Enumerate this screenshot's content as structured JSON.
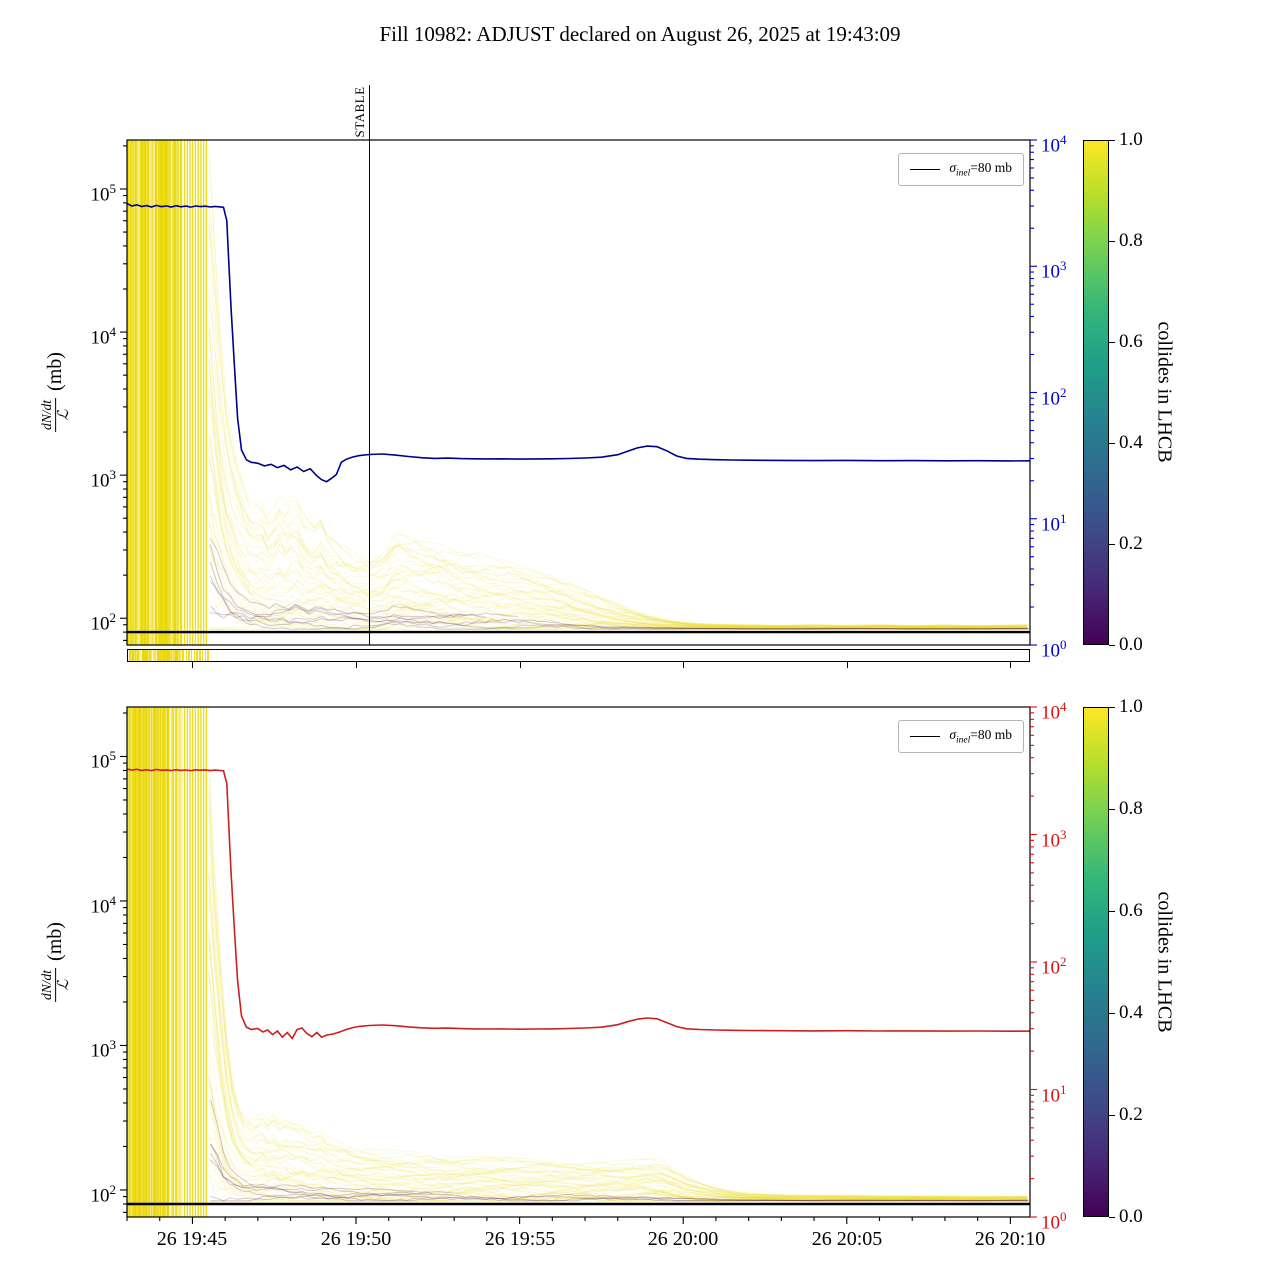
{
  "title": "Fill 10982: ADJUST declared on August 26, 2025 at 19:43:09",
  "ylabel": {
    "numerator": "dN/dt",
    "denominator": "ℒ",
    "unit": "(mb)"
  },
  "legend": {
    "sigma": "σ",
    "sub": "inel",
    "eq": "=80 mb"
  },
  "stable_label": "STABLE",
  "colorbar": {
    "label": "collides in LHCB",
    "vmin": 0.0,
    "vmax": 1.0,
    "ticks": [
      0.0,
      0.2,
      0.4,
      0.6,
      0.8,
      1.0
    ],
    "viridis": [
      "#440154",
      "#482878",
      "#3e4a89",
      "#31688e",
      "#26828e",
      "#1f9e89",
      "#35b779",
      "#6ece58",
      "#b5de2b",
      "#fde725"
    ]
  },
  "chart_data": [
    {
      "type": "line",
      "position": "top",
      "line_color": "#00008b",
      "axis_color": "#0000cd",
      "x_unit": "minutes since 2025-08-26 19:43",
      "xlim": [
        0,
        27.6
      ],
      "ylim_left": [
        65,
        220000
      ],
      "ylim_right": [
        1,
        10000
      ],
      "x_ticks": [
        {
          "x": 2,
          "label": "26 19:45"
        },
        {
          "x": 7,
          "label": "26 19:50"
        },
        {
          "x": 12,
          "label": "26 19:55"
        },
        {
          "x": 17,
          "label": "26 20:00"
        },
        {
          "x": 22,
          "label": "26 20:05"
        },
        {
          "x": 27,
          "label": "26 20:10"
        }
      ],
      "x_tick_labels_visible": false,
      "left_tick_exponents": [
        2,
        3,
        4,
        5
      ],
      "right_tick_exponents": [
        0,
        1,
        2,
        3,
        4
      ],
      "sigma_line_mb": 80,
      "legend_label": "σinel=80 mb",
      "stable_line_x": 7.4,
      "has_strip": true,
      "bunch_floor": 84,
      "bunch_burst": {
        "x0": 0,
        "x1": 2.5,
        "note": "dense vertical per-bunch lines spanning full axis before beam collapse"
      },
      "total_line": [
        [
          0,
          79000
        ],
        [
          0.15,
          76000
        ],
        [
          0.3,
          77500
        ],
        [
          0.45,
          75500
        ],
        [
          0.6,
          76500
        ],
        [
          0.75,
          74800
        ],
        [
          0.9,
          76800
        ],
        [
          1.05,
          75200
        ],
        [
          1.2,
          76200
        ],
        [
          1.35,
          74900
        ],
        [
          1.5,
          76400
        ],
        [
          1.65,
          75100
        ],
        [
          1.8,
          75900
        ],
        [
          1.95,
          74700
        ],
        [
          2.1,
          76100
        ],
        [
          2.25,
          75300
        ],
        [
          2.4,
          75800
        ],
        [
          2.55,
          74900
        ],
        [
          2.7,
          75600
        ],
        [
          2.85,
          75000
        ],
        [
          2.95,
          74500
        ],
        [
          3.05,
          60000
        ],
        [
          3.1,
          35000
        ],
        [
          3.18,
          15000
        ],
        [
          3.28,
          6000
        ],
        [
          3.38,
          2500
        ],
        [
          3.5,
          1500
        ],
        [
          3.65,
          1280
        ],
        [
          3.8,
          1230
        ],
        [
          4.0,
          1210
        ],
        [
          4.2,
          1160
        ],
        [
          4.4,
          1190
        ],
        [
          4.6,
          1130
        ],
        [
          4.8,
          1170
        ],
        [
          5.0,
          1090
        ],
        [
          5.2,
          1140
        ],
        [
          5.4,
          1060
        ],
        [
          5.6,
          1110
        ],
        [
          5.8,
          990
        ],
        [
          5.95,
          930
        ],
        [
          6.1,
          900
        ],
        [
          6.25,
          950
        ],
        [
          6.4,
          1010
        ],
        [
          6.55,
          1230
        ],
        [
          6.7,
          1290
        ],
        [
          6.9,
          1340
        ],
        [
          7.1,
          1370
        ],
        [
          7.4,
          1395
        ],
        [
          7.8,
          1405
        ],
        [
          8.2,
          1380
        ],
        [
          8.6,
          1350
        ],
        [
          9.0,
          1325
        ],
        [
          9.4,
          1310
        ],
        [
          9.8,
          1315
        ],
        [
          10.2,
          1305
        ],
        [
          10.6,
          1300
        ],
        [
          11.0,
          1298
        ],
        [
          11.5,
          1302
        ],
        [
          12.0,
          1295
        ],
        [
          12.5,
          1298
        ],
        [
          13.0,
          1302
        ],
        [
          13.5,
          1308
        ],
        [
          14.0,
          1318
        ],
        [
          14.5,
          1335
        ],
        [
          15.0,
          1390
        ],
        [
          15.3,
          1470
        ],
        [
          15.6,
          1550
        ],
        [
          15.9,
          1595
        ],
        [
          16.2,
          1580
        ],
        [
          16.5,
          1480
        ],
        [
          16.8,
          1360
        ],
        [
          17.1,
          1310
        ],
        [
          17.5,
          1292
        ],
        [
          18.0,
          1282
        ],
        [
          18.5,
          1276
        ],
        [
          19.0,
          1272
        ],
        [
          20.0,
          1268
        ],
        [
          21.0,
          1264
        ],
        [
          22.0,
          1267
        ],
        [
          23.0,
          1262
        ],
        [
          24.0,
          1263
        ],
        [
          25.0,
          1259
        ],
        [
          26.0,
          1262
        ],
        [
          27.0,
          1258
        ],
        [
          27.6,
          1260
        ]
      ],
      "bunch_envelope_upper": [
        [
          2.5,
          150000
        ],
        [
          2.65,
          40000
        ],
        [
          2.8,
          12000
        ],
        [
          2.95,
          4500
        ],
        [
          3.1,
          2200
        ],
        [
          3.3,
          1300
        ],
        [
          3.5,
          850
        ],
        [
          3.7,
          650
        ],
        [
          3.9,
          560
        ],
        [
          4.1,
          620
        ],
        [
          4.3,
          480
        ],
        [
          4.5,
          560
        ],
        [
          4.7,
          700
        ],
        [
          4.9,
          520
        ],
        [
          5.1,
          780
        ],
        [
          5.3,
          560
        ],
        [
          5.5,
          460
        ],
        [
          5.7,
          420
        ],
        [
          5.9,
          520
        ],
        [
          6.1,
          400
        ],
        [
          6.4,
          340
        ],
        [
          6.7,
          300
        ],
        [
          7.0,
          285
        ],
        [
          7.5,
          265
        ],
        [
          7.9,
          300
        ],
        [
          8.2,
          390
        ],
        [
          8.6,
          370
        ],
        [
          9.0,
          350
        ],
        [
          9.5,
          330
        ],
        [
          10.0,
          305
        ],
        [
          10.5,
          285
        ],
        [
          11.0,
          265
        ],
        [
          11.5,
          245
        ],
        [
          12.0,
          225
        ],
        [
          12.5,
          205
        ],
        [
          13.0,
          190
        ],
        [
          13.5,
          172
        ],
        [
          14.0,
          155
        ],
        [
          14.5,
          140
        ],
        [
          15.0,
          126
        ],
        [
          15.5,
          114
        ],
        [
          16.0,
          104
        ],
        [
          16.5,
          98
        ],
        [
          17.0,
          94
        ],
        [
          17.5,
          92
        ],
        [
          18.0,
          91
        ],
        [
          19.0,
          90
        ],
        [
          20.0,
          89
        ],
        [
          21.0,
          90
        ],
        [
          22.0,
          89
        ],
        [
          23.0,
          90
        ],
        [
          24.0,
          89
        ],
        [
          25.0,
          90
        ],
        [
          26.0,
          89
        ],
        [
          27.6,
          90
        ]
      ]
    },
    {
      "type": "line",
      "position": "bottom",
      "line_color": "#cc2020",
      "axis_color": "#dd1111",
      "x_unit": "minutes since 2025-08-26 19:43",
      "xlim": [
        0,
        27.6
      ],
      "ylim_left": [
        65,
        220000
      ],
      "ylim_right": [
        1,
        10000
      ],
      "x_ticks": [
        {
          "x": 2,
          "label": "26 19:45"
        },
        {
          "x": 7,
          "label": "26 19:50"
        },
        {
          "x": 12,
          "label": "26 19:55"
        },
        {
          "x": 17,
          "label": "26 20:00"
        },
        {
          "x": 22,
          "label": "26 20:05"
        },
        {
          "x": 27,
          "label": "26 20:10"
        }
      ],
      "x_tick_labels_visible": true,
      "left_tick_exponents": [
        2,
        3,
        4,
        5
      ],
      "right_tick_exponents": [
        0,
        1,
        2,
        3,
        4
      ],
      "sigma_line_mb": 80,
      "legend_label": "σinel=80 mb",
      "stable_line_x": null,
      "has_strip": false,
      "bunch_floor": 84,
      "bunch_burst": {
        "x0": 0,
        "x1": 2.5,
        "note": "dense vertical per-bunch lines spanning full axis before beam collapse"
      },
      "total_line": [
        [
          0,
          82000
        ],
        [
          0.15,
          80500
        ],
        [
          0.3,
          81500
        ],
        [
          0.45,
          80000
        ],
        [
          0.6,
          81000
        ],
        [
          0.75,
          79800
        ],
        [
          0.9,
          81200
        ],
        [
          1.05,
          80200
        ],
        [
          1.2,
          80800
        ],
        [
          1.35,
          79900
        ],
        [
          1.5,
          81000
        ],
        [
          1.65,
          80100
        ],
        [
          1.8,
          80600
        ],
        [
          1.95,
          79700
        ],
        [
          2.1,
          80900
        ],
        [
          2.25,
          80300
        ],
        [
          2.4,
          80700
        ],
        [
          2.55,
          79900
        ],
        [
          2.7,
          80500
        ],
        [
          2.85,
          80000
        ],
        [
          2.95,
          79600
        ],
        [
          3.05,
          65000
        ],
        [
          3.1,
          38000
        ],
        [
          3.18,
          16000
        ],
        [
          3.28,
          6500
        ],
        [
          3.38,
          2800
        ],
        [
          3.5,
          1600
        ],
        [
          3.65,
          1340
        ],
        [
          3.8,
          1290
        ],
        [
          4.0,
          1310
        ],
        [
          4.15,
          1240
        ],
        [
          4.3,
          1280
        ],
        [
          4.45,
          1190
        ],
        [
          4.6,
          1260
        ],
        [
          4.75,
          1140
        ],
        [
          4.9,
          1230
        ],
        [
          5.05,
          1120
        ],
        [
          5.2,
          1290
        ],
        [
          5.35,
          1320
        ],
        [
          5.5,
          1210
        ],
        [
          5.65,
          1150
        ],
        [
          5.8,
          1230
        ],
        [
          5.95,
          1140
        ],
        [
          6.1,
          1180
        ],
        [
          6.3,
          1200
        ],
        [
          6.5,
          1240
        ],
        [
          6.7,
          1290
        ],
        [
          6.9,
          1330
        ],
        [
          7.1,
          1355
        ],
        [
          7.4,
          1375
        ],
        [
          7.8,
          1385
        ],
        [
          8.2,
          1370
        ],
        [
          8.6,
          1345
        ],
        [
          9.0,
          1325
        ],
        [
          9.4,
          1315
        ],
        [
          9.8,
          1318
        ],
        [
          10.2,
          1308
        ],
        [
          10.6,
          1302
        ],
        [
          11.0,
          1300
        ],
        [
          11.5,
          1303
        ],
        [
          12.0,
          1297
        ],
        [
          12.5,
          1300
        ],
        [
          13.0,
          1303
        ],
        [
          13.5,
          1310
        ],
        [
          14.0,
          1320
        ],
        [
          14.5,
          1338
        ],
        [
          15.0,
          1392
        ],
        [
          15.3,
          1460
        ],
        [
          15.6,
          1520
        ],
        [
          15.9,
          1548
        ],
        [
          16.2,
          1530
        ],
        [
          16.5,
          1440
        ],
        [
          16.8,
          1350
        ],
        [
          17.1,
          1305
        ],
        [
          17.5,
          1290
        ],
        [
          18.0,
          1280
        ],
        [
          18.5,
          1274
        ],
        [
          19.0,
          1270
        ],
        [
          20.0,
          1266
        ],
        [
          21.0,
          1262
        ],
        [
          22.0,
          1265
        ],
        [
          23.0,
          1260
        ],
        [
          24.0,
          1261
        ],
        [
          25.0,
          1257
        ],
        [
          26.0,
          1260
        ],
        [
          27.0,
          1256
        ],
        [
          27.6,
          1258
        ]
      ],
      "bunch_envelope_upper": [
        [
          2.5,
          150000
        ],
        [
          2.65,
          30000
        ],
        [
          2.8,
          8000
        ],
        [
          2.95,
          2500
        ],
        [
          3.1,
          1000
        ],
        [
          3.3,
          520
        ],
        [
          3.5,
          380
        ],
        [
          3.7,
          330
        ],
        [
          3.9,
          310
        ],
        [
          4.1,
          330
        ],
        [
          4.3,
          290
        ],
        [
          4.5,
          320
        ],
        [
          4.7,
          270
        ],
        [
          4.9,
          300
        ],
        [
          5.1,
          260
        ],
        [
          5.3,
          280
        ],
        [
          5.5,
          245
        ],
        [
          5.7,
          235
        ],
        [
          5.9,
          250
        ],
        [
          6.1,
          228
        ],
        [
          6.4,
          215
        ],
        [
          6.7,
          205
        ],
        [
          7.0,
          198
        ],
        [
          7.5,
          190
        ],
        [
          8.0,
          185
        ],
        [
          8.5,
          180
        ],
        [
          9.0,
          176
        ],
        [
          9.5,
          172
        ],
        [
          10.0,
          169
        ],
        [
          10.5,
          167
        ],
        [
          11.0,
          165
        ],
        [
          11.5,
          163
        ],
        [
          12.0,
          161
        ],
        [
          12.5,
          160
        ],
        [
          13.0,
          158
        ],
        [
          13.5,
          157
        ],
        [
          14.0,
          156
        ],
        [
          14.5,
          155
        ],
        [
          15.0,
          156
        ],
        [
          15.5,
          158
        ],
        [
          15.9,
          162
        ],
        [
          16.3,
          158
        ],
        [
          16.7,
          140
        ],
        [
          17.0,
          125
        ],
        [
          17.5,
          112
        ],
        [
          18.0,
          103
        ],
        [
          18.5,
          98
        ],
        [
          19.0,
          95
        ],
        [
          20.0,
          93
        ],
        [
          21.0,
          92
        ],
        [
          22.0,
          92
        ],
        [
          23.0,
          91
        ],
        [
          24.0,
          91
        ],
        [
          25.0,
          91
        ],
        [
          26.0,
          90
        ],
        [
          27.6,
          91
        ]
      ]
    }
  ]
}
